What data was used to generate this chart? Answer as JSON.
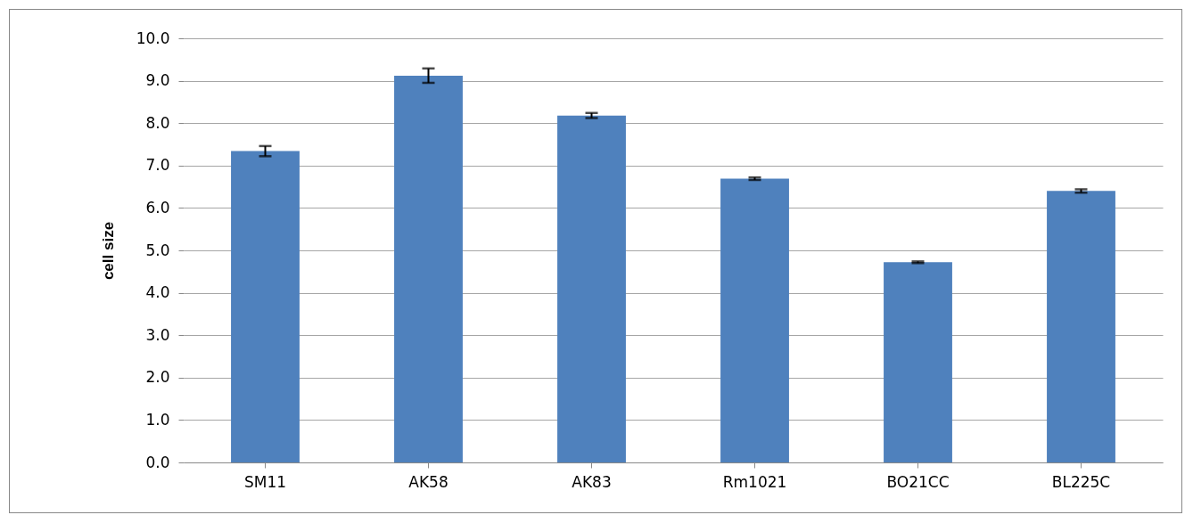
{
  "chart_data": {
    "type": "bar",
    "ylabel": "cell size",
    "categories": [
      "SM11",
      "AK58",
      "AK83",
      "Rm1021",
      "BO21CC",
      "BL225C"
    ],
    "values": [
      7.34,
      9.12,
      8.18,
      6.69,
      4.72,
      6.4
    ],
    "errors": [
      0.12,
      0.17,
      0.06,
      0.03,
      0.02,
      0.04
    ],
    "color": "#4f81bd",
    "ylim": [
      0,
      10
    ],
    "yticks": [
      {
        "value": 0,
        "label": "0.0"
      },
      {
        "value": 1,
        "label": "1.0"
      },
      {
        "value": 2,
        "label": "2.0"
      },
      {
        "value": 3,
        "label": "3.0"
      },
      {
        "value": 4,
        "label": "4.0"
      },
      {
        "value": 5,
        "label": "5.0"
      },
      {
        "value": 6,
        "label": "6.0"
      },
      {
        "value": 7,
        "label": "7.0"
      },
      {
        "value": 8,
        "label": "8.0"
      },
      {
        "value": 9,
        "label": "9.0"
      },
      {
        "value": 10,
        "label": "10.0"
      }
    ],
    "grid": "y"
  }
}
